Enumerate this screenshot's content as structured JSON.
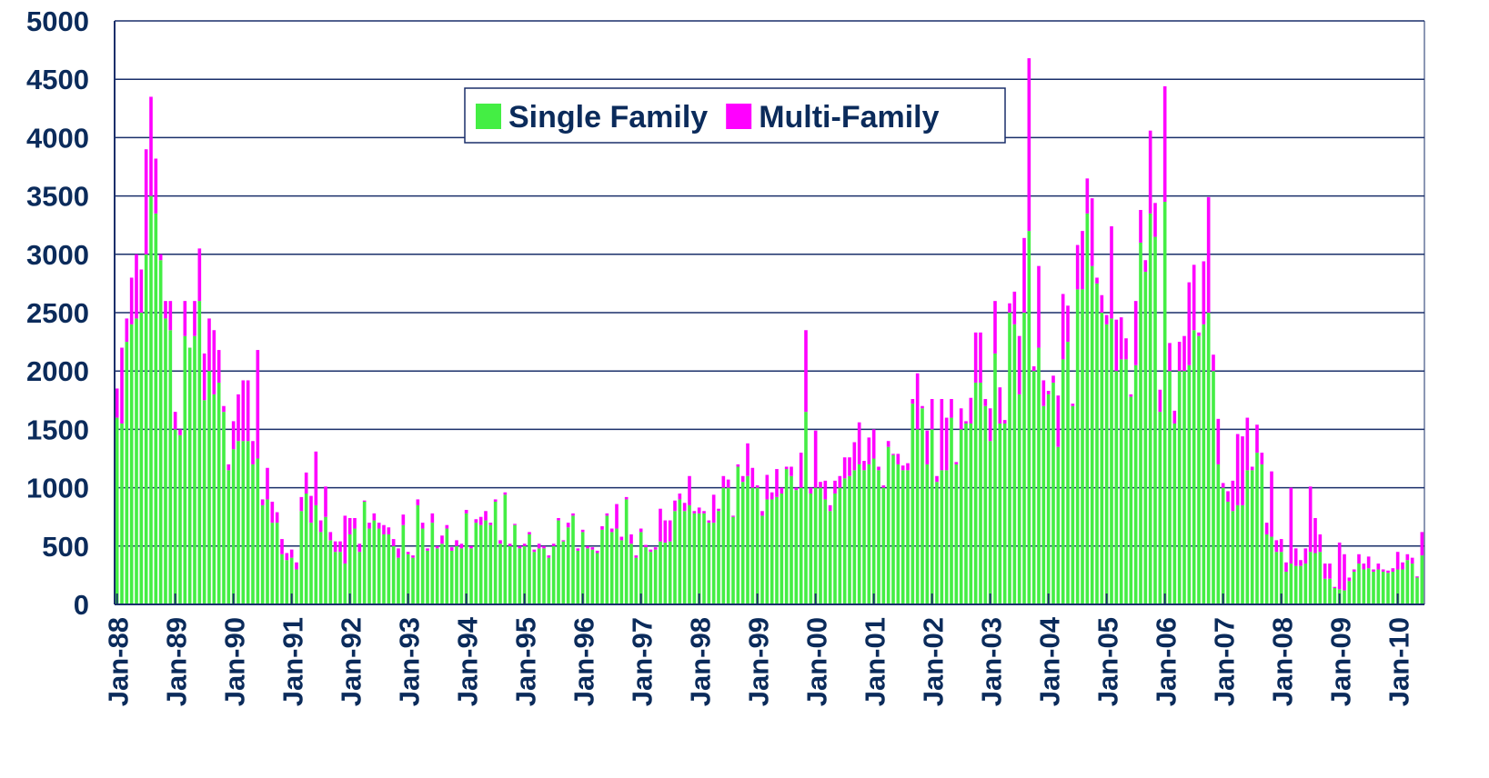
{
  "chart_data": {
    "type": "stacked_bar",
    "categories": [
      "Jan-88",
      null,
      null,
      null,
      null,
      null,
      null,
      null,
      null,
      null,
      null,
      null,
      "Jan-89",
      null,
      null,
      null,
      null,
      null,
      null,
      null,
      null,
      null,
      null,
      null,
      "Jan-90",
      null,
      null,
      null,
      null,
      null,
      null,
      null,
      null,
      null,
      null,
      null,
      "Jan-91",
      null,
      null,
      null,
      null,
      null,
      null,
      null,
      null,
      null,
      null,
      null,
      "Jan-92",
      null,
      null,
      null,
      null,
      null,
      null,
      null,
      null,
      null,
      null,
      null,
      "Jan-93",
      null,
      null,
      null,
      null,
      null,
      null,
      null,
      null,
      null,
      null,
      null,
      "Jan-94",
      null,
      null,
      null,
      null,
      null,
      null,
      null,
      null,
      null,
      null,
      null,
      "Jan-95",
      null,
      null,
      null,
      null,
      null,
      null,
      null,
      null,
      null,
      null,
      null,
      "Jan-96",
      null,
      null,
      null,
      null,
      null,
      null,
      null,
      null,
      null,
      null,
      null,
      "Jan-97",
      null,
      null,
      null,
      null,
      null,
      null,
      null,
      null,
      null,
      null,
      null,
      "Jan-98",
      null,
      null,
      null,
      null,
      null,
      null,
      null,
      null,
      null,
      null,
      null,
      "Jan-99",
      null,
      null,
      null,
      null,
      null,
      null,
      null,
      null,
      null,
      null,
      null,
      "Jan-00",
      null,
      null,
      null,
      null,
      null,
      null,
      null,
      null,
      null,
      null,
      null,
      "Jan-01",
      null,
      null,
      null,
      null,
      null,
      null,
      null,
      null,
      null,
      null,
      null,
      "Jan-02",
      null,
      null,
      null,
      null,
      null,
      null,
      null,
      null,
      null,
      null,
      null,
      "Jan-03",
      null,
      null,
      null,
      null,
      null,
      null,
      null,
      null,
      null,
      null,
      null,
      "Jan-04",
      null,
      null,
      null,
      null,
      null,
      null,
      null,
      null,
      null,
      null,
      null,
      "Jan-05",
      null,
      null,
      null,
      null,
      null,
      null,
      null,
      null,
      null,
      null,
      null,
      "Jan-06",
      null,
      null,
      null,
      null,
      null,
      null,
      null,
      null,
      null,
      null,
      null,
      "Jan-07",
      null,
      null,
      null,
      null,
      null,
      null,
      null,
      null,
      null,
      null,
      null,
      "Jan-08",
      null,
      null,
      null,
      null,
      null,
      null,
      null,
      null,
      null,
      null,
      null,
      "Jan-09",
      null,
      null,
      null,
      null,
      null,
      null,
      null,
      null,
      null,
      null,
      null,
      "Jan-10",
      null,
      null,
      null,
      null,
      null
    ],
    "series": [
      {
        "name": "Single Family",
        "color": "#44ee44",
        "values": [
          1600,
          1550,
          2250,
          2400,
          2450,
          2500,
          3000,
          3500,
          3350,
          2950,
          2450,
          2350,
          1500,
          1450,
          2300,
          2200,
          2300,
          2600,
          1750,
          2000,
          1800,
          1900,
          1650,
          1150,
          1330,
          1400,
          1400,
          1400,
          1200,
          1250,
          850,
          900,
          700,
          700,
          430,
          380,
          400,
          300,
          800,
          950,
          700,
          850,
          620,
          750,
          550,
          450,
          450,
          350,
          600,
          650,
          450,
          880,
          650,
          720,
          650,
          600,
          600,
          500,
          400,
          680,
          430,
          400,
          850,
          650,
          460,
          700,
          480,
          520,
          650,
          460,
          500,
          480,
          780,
          480,
          700,
          680,
          720,
          680,
          880,
          520,
          940,
          500,
          680,
          480,
          500,
          600,
          450,
          480,
          480,
          400,
          500,
          720,
          540,
          660,
          760,
          460,
          620,
          480,
          470,
          440,
          640,
          760,
          620,
          650,
          550,
          900,
          520,
          400,
          620,
          490,
          450,
          470,
          540,
          530,
          540,
          800,
          900,
          800,
          850,
          780,
          780,
          780,
          700,
          700,
          800,
          1000,
          1000,
          750,
          1180,
          1050,
          1100,
          1000,
          1000,
          760,
          900,
          900,
          920,
          950,
          1160,
          1100,
          980,
          1000,
          1650,
          950,
          1000,
          1000,
          900,
          800,
          950,
          1000,
          1080,
          1100,
          1150,
          1200,
          1150,
          1200,
          1250,
          1150,
          1000,
          1350,
          1280,
          1200,
          1150,
          1150,
          1720,
          1500,
          1680,
          1200,
          1500,
          1050,
          1150,
          1150,
          1600,
          1200,
          1500,
          1550,
          1550,
          1900,
          1900,
          1700,
          1400,
          2150,
          1550,
          1550,
          2500,
          2400,
          1800,
          2500,
          3200,
          2000,
          2200,
          1700,
          1800,
          1900,
          1350,
          2100,
          2250,
          1700,
          2700,
          2700,
          3350,
          2900,
          2750,
          2500,
          2400,
          2450,
          2000,
          2100,
          2100,
          1780,
          2050,
          3100,
          2850,
          3350,
          3150,
          1650,
          3450,
          2000,
          1550,
          2000,
          2000,
          2050,
          2350,
          2300,
          2400,
          2500,
          2000,
          1200,
          1000,
          880,
          800,
          850,
          850,
          1150,
          1150,
          1300,
          1200,
          600,
          580,
          450,
          450,
          280,
          350,
          330,
          330,
          350,
          450,
          440,
          450,
          220,
          220,
          140,
          130,
          120,
          200,
          280,
          350,
          300,
          310,
          280,
          300,
          280,
          270,
          280,
          300,
          300,
          380,
          350,
          230,
          420
        ]
      },
      {
        "name": "Multi-Family",
        "color": "#ff00ff",
        "values": [
          250,
          650,
          200,
          400,
          550,
          370,
          900,
          850,
          470,
          50,
          150,
          250,
          150,
          50,
          300,
          0,
          300,
          450,
          400,
          450,
          550,
          280,
          50,
          50,
          240,
          400,
          520,
          520,
          200,
          930,
          50,
          270,
          180,
          90,
          130,
          60,
          70,
          60,
          120,
          180,
          230,
          460,
          100,
          260,
          70,
          90,
          90,
          410,
          140,
          90,
          70,
          10,
          50,
          60,
          50,
          80,
          60,
          60,
          80,
          90,
          20,
          20,
          50,
          50,
          20,
          80,
          20,
          70,
          30,
          30,
          50,
          40,
          30,
          20,
          30,
          70,
          80,
          20,
          20,
          30,
          20,
          20,
          10,
          20,
          20,
          20,
          20,
          40,
          20,
          20,
          20,
          20,
          10,
          40,
          20,
          20,
          20,
          20,
          20,
          20,
          30,
          20,
          30,
          210,
          30,
          20,
          80,
          20,
          30,
          20,
          20,
          20,
          280,
          190,
          180,
          90,
          50,
          70,
          250,
          20,
          50,
          20,
          20,
          240,
          20,
          100,
          70,
          10,
          20,
          50,
          280,
          170,
          20,
          40,
          210,
          60,
          240,
          50,
          20,
          80,
          20,
          300,
          700,
          50,
          490,
          50,
          160,
          50,
          110,
          100,
          180,
          160,
          240,
          360,
          80,
          230,
          250,
          30,
          20,
          50,
          10,
          90,
          40,
          60,
          40,
          480,
          20,
          290,
          260,
          50,
          610,
          450,
          160,
          20,
          180,
          20,
          220,
          430,
          430,
          60,
          280,
          450,
          310,
          30,
          80,
          280,
          500,
          640,
          1480,
          40,
          700,
          220,
          30,
          60,
          440,
          560,
          310,
          20,
          380,
          500,
          300,
          580,
          50,
          150,
          80,
          790,
          440,
          360,
          180,
          20,
          550,
          280,
          100,
          710,
          290,
          190,
          990,
          240,
          110,
          250,
          300,
          710,
          560,
          30,
          540,
          990,
          140,
          390,
          40,
          90,
          260,
          610,
          590,
          450,
          30,
          240,
          100,
          100,
          560,
          100,
          110,
          80,
          650,
          150,
          50,
          130,
          560,
          300,
          150,
          130,
          130,
          10,
          400,
          310,
          30,
          20,
          80,
          50,
          100,
          20,
          50,
          20,
          20,
          30,
          150,
          60,
          50,
          50,
          10,
          200
        ]
      }
    ],
    "ylim": [
      0,
      5000
    ],
    "yticks": [
      0,
      500,
      1000,
      1500,
      2000,
      2500,
      3000,
      3500,
      4000,
      4500,
      5000
    ],
    "grid": true,
    "legend": "upper center"
  }
}
